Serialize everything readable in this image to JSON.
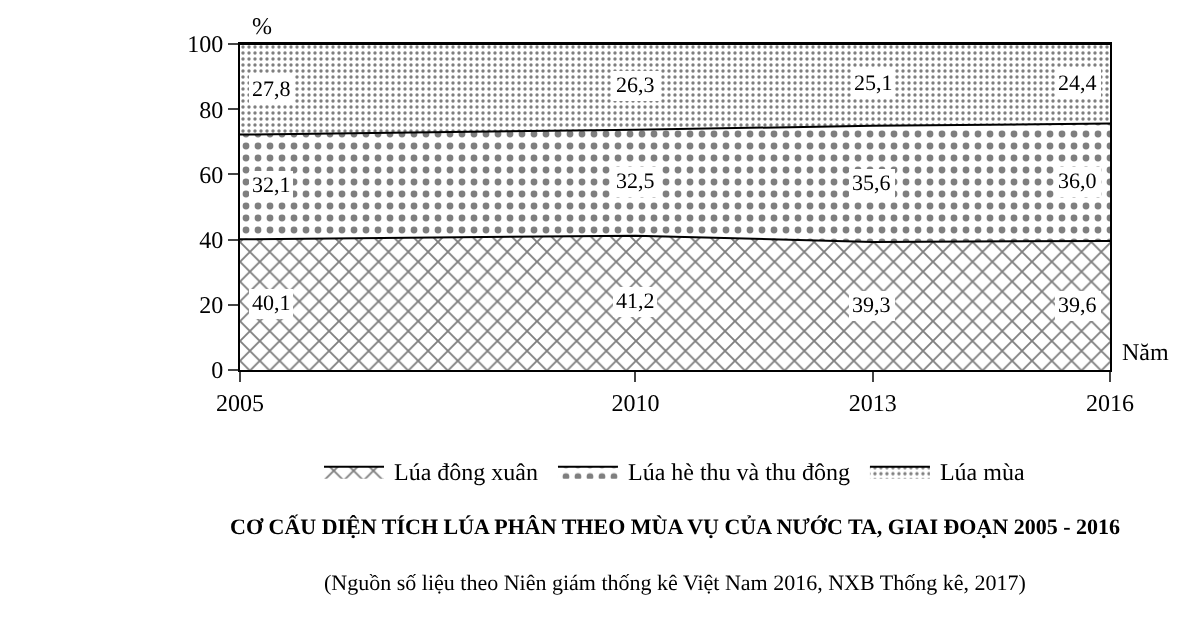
{
  "chart_data": {
    "type": "area",
    "stacked": true,
    "title": "CƠ CẤU DIỆN TÍCH LÚA PHÂN THEO MÙA VỤ CỦA NƯỚC TA, GIAI ĐOẠN 2005 - 2016",
    "xlabel": "Năm",
    "ylabel": "%",
    "x": [
      2005,
      2010,
      2013,
      2016
    ],
    "xlim": [
      2005,
      2016
    ],
    "xticks": [
      2005,
      2010,
      2013,
      2016
    ],
    "ylim": [
      0,
      100
    ],
    "yticks": [
      0,
      20,
      40,
      60,
      80,
      100
    ],
    "series": [
      {
        "name": "Lúa đông xuân",
        "color": "#000000",
        "values": [
          40.1,
          41.2,
          39.3,
          39.6
        ],
        "value_labels": [
          "40,1",
          "41,2",
          "39,3",
          "39,6"
        ]
      },
      {
        "name": "Lúa hè thu và thu đông",
        "color": "#000000",
        "values": [
          32.1,
          32.5,
          35.6,
          36.0
        ],
        "value_labels": [
          "32,1",
          "32,5",
          "35,6",
          "36,0"
        ]
      },
      {
        "name": "Lúa mùa",
        "color": "#000000",
        "values": [
          27.8,
          26.3,
          25.1,
          24.4
        ],
        "value_labels": [
          "27,8",
          "26,3",
          "25,1",
          "24,4"
        ]
      }
    ],
    "annotations": [
      "(Nguồn số liệu theo Niên giám thống kê Việt Nam 2016, NXB Thống kê, 2017)"
    ],
    "legend": "bottom",
    "marker": "none",
    "line_style": "solid"
  }
}
